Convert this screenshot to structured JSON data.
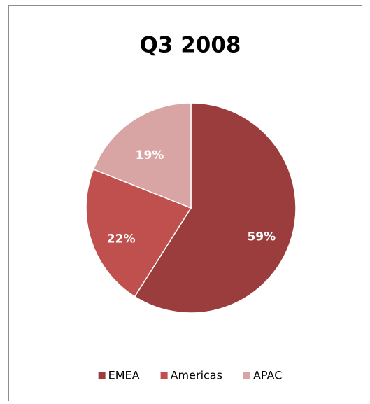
{
  "chart_data": {
    "type": "pie",
    "title": "Q3 2008",
    "categories": [
      "EMEA",
      "Americas",
      "APAC"
    ],
    "values": [
      59,
      22,
      19
    ],
    "value_labels": [
      "59%",
      "22%",
      "19%"
    ],
    "colors": [
      "#9b3d3c",
      "#c0504d",
      "#d8a5a4"
    ],
    "legend": "bottom"
  }
}
